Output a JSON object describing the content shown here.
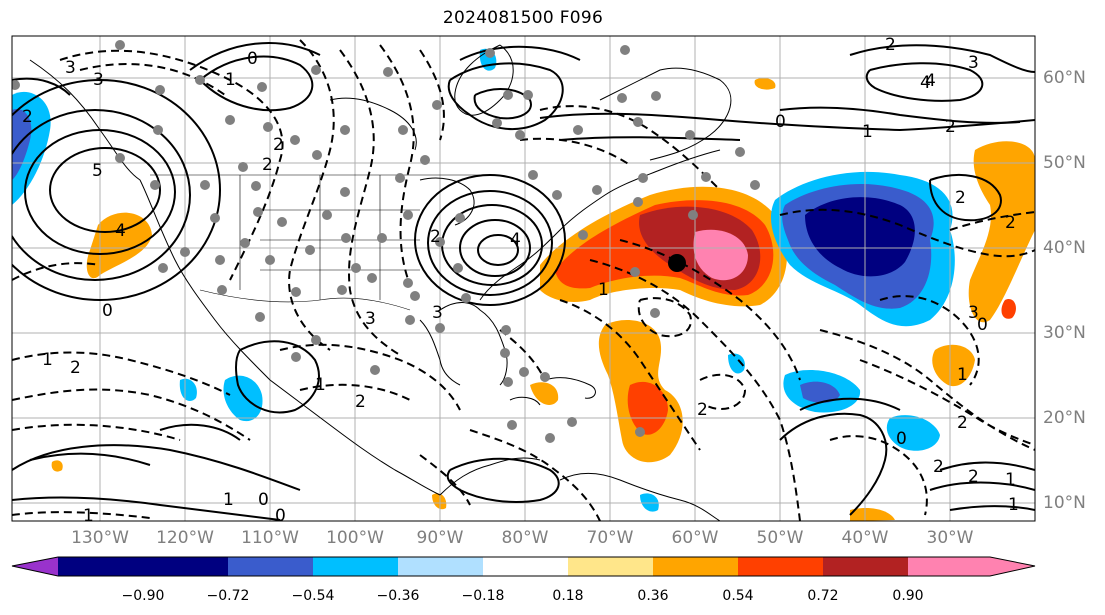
{
  "title": "2024081500 F096",
  "lon_labels": [
    "130°W",
    "120°W",
    "110°W",
    "100°W",
    "90°W",
    "80°W",
    "70°W",
    "60°W",
    "50°W",
    "40°W",
    "30°W"
  ],
  "lat_labels": [
    "60°N",
    "50°N",
    "40°N",
    "30°N",
    "20°N",
    "10°N"
  ],
  "colorbar": {
    "ticks": [
      "−0.90",
      "−0.72",
      "−0.54",
      "−0.36",
      "−0.18",
      "0.18",
      "0.36",
      "0.54",
      "0.72",
      "0.90"
    ],
    "colors": [
      "#9932cc",
      "#000080",
      "#3a5ccc",
      "#00bfff",
      "#b0e0ff",
      "#ffffff",
      "#ffe68a",
      "#ffa500",
      "#ff4000",
      "#b22222",
      "#ff82b0"
    ]
  },
  "contour_labels": [
    "3",
    "2",
    "1",
    "0",
    "2",
    "2",
    "2",
    "3",
    "5",
    "4",
    "4",
    "3",
    "0",
    "2",
    "1",
    "2",
    "3",
    "1",
    "2",
    "0",
    "2",
    "4",
    "3",
    "2",
    "0",
    "2",
    "1",
    "1",
    "2",
    "0",
    "1",
    "2",
    "2",
    "1",
    "2",
    "1",
    "0",
    "1",
    "0",
    "3",
    "4",
    "1"
  ]
}
